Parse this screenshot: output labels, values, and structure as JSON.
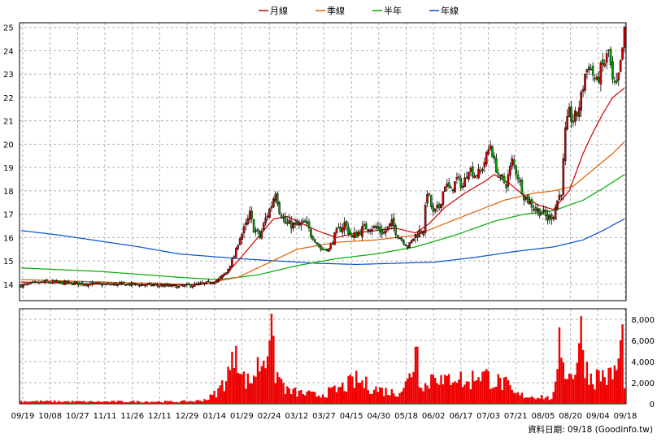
{
  "chart_data": {
    "type": "candlestick",
    "legend": [
      {
        "name": "月線",
        "color": "#cc0000"
      },
      {
        "name": "季線",
        "color": "#e06000"
      },
      {
        "name": "半年",
        "color": "#00aa00"
      },
      {
        "name": "年線",
        "color": "#0050cc"
      }
    ],
    "legend_placement": "top-center",
    "grid": true,
    "price_axis": {
      "ylim": [
        13.3,
        25.2
      ],
      "ticks": [
        14,
        15,
        16,
        17,
        18,
        19,
        20,
        21,
        22,
        23,
        24,
        25
      ]
    },
    "volume_axis": {
      "ylim": [
        0,
        9000
      ],
      "ticks": [
        0,
        2000,
        4000,
        6000,
        8000
      ],
      "tick_labels": [
        "0",
        "2,000",
        "4,000",
        "6,000",
        "8,000"
      ]
    },
    "x_tick_labels": [
      "09/19",
      "10/08",
      "10/27",
      "11/11",
      "11/26",
      "12/11",
      "12/29",
      "01/14",
      "01/29",
      "02/24",
      "03/12",
      "03/27",
      "04/15",
      "04/30",
      "05/18",
      "06/02",
      "06/17",
      "07/03",
      "07/21",
      "08/05",
      "08/20",
      "09/04",
      "09/18"
    ],
    "source_note": "資料日期: 09/18  (Goodinfo.tw)",
    "colors": {
      "up": "#cc0000",
      "down": "#00a000",
      "volume": "#ee0000",
      "grid": "#b0b0b0"
    },
    "price_path": [
      [
        0,
        13.95
      ],
      [
        12,
        14.1
      ],
      [
        25,
        14.05
      ],
      [
        40,
        14.0
      ],
      [
        55,
        14.0
      ],
      [
        70,
        13.95
      ],
      [
        80,
        13.9
      ],
      [
        90,
        14.0
      ],
      [
        95,
        14.05
      ],
      [
        100,
        14.2
      ],
      [
        104,
        14.5
      ],
      [
        108,
        15.2
      ],
      [
        111,
        16.0
      ],
      [
        114,
        16.5
      ],
      [
        116,
        17.0
      ],
      [
        118,
        16.4
      ],
      [
        121,
        16.0
      ],
      [
        124,
        16.8
      ],
      [
        127,
        17.4
      ],
      [
        129,
        18.0
      ],
      [
        131,
        17.2
      ],
      [
        134,
        16.6
      ],
      [
        140,
        16.5
      ],
      [
        144,
        16.6
      ],
      [
        148,
        16.0
      ],
      [
        152,
        15.5
      ],
      [
        156,
        15.5
      ],
      [
        160,
        16.2
      ],
      [
        164,
        16.6
      ],
      [
        168,
        16.0
      ],
      [
        172,
        16.3
      ],
      [
        176,
        16.5
      ],
      [
        180,
        16.4
      ],
      [
        184,
        16.2
      ],
      [
        188,
        16.6
      ],
      [
        192,
        16.0
      ],
      [
        196,
        15.6
      ],
      [
        200,
        16.1
      ],
      [
        204,
        16.4
      ],
      [
        206,
        18.0
      ],
      [
        209,
        17.0
      ],
      [
        212,
        17.3
      ],
      [
        215,
        18.3
      ],
      [
        218,
        18.0
      ],
      [
        221,
        18.5
      ],
      [
        224,
        18.2
      ],
      [
        227,
        19.0
      ],
      [
        230,
        18.7
      ],
      [
        233,
        18.8
      ],
      [
        236,
        19.5
      ],
      [
        238,
        20.0
      ],
      [
        240,
        19.2
      ],
      [
        243,
        18.5
      ],
      [
        246,
        18.3
      ],
      [
        249,
        19.3
      ],
      [
        252,
        18.6
      ],
      [
        255,
        17.8
      ],
      [
        258,
        17.5
      ],
      [
        261,
        17.2
      ],
      [
        264,
        17.1
      ],
      [
        267,
        16.8
      ],
      [
        270,
        17.0
      ],
      [
        272,
        17.6
      ],
      [
        274,
        18.0
      ],
      [
        276,
        20.5
      ],
      [
        278,
        21.3
      ],
      [
        280,
        21.0
      ],
      [
        282,
        21.3
      ],
      [
        284,
        22.0
      ],
      [
        286,
        23.0
      ],
      [
        288,
        23.4
      ],
      [
        290,
        23.0
      ],
      [
        292,
        22.6
      ],
      [
        294,
        23.2
      ],
      [
        296,
        23.5
      ],
      [
        298,
        24.0
      ],
      [
        300,
        22.6
      ],
      [
        302,
        22.4
      ],
      [
        304,
        23.4
      ],
      [
        306,
        24.8
      ]
    ],
    "ma_month": [
      [
        0,
        14.1
      ],
      [
        40,
        14.0
      ],
      [
        90,
        13.98
      ],
      [
        100,
        14.1
      ],
      [
        110,
        15.0
      ],
      [
        120,
        16.0
      ],
      [
        128,
        16.8
      ],
      [
        135,
        16.9
      ],
      [
        150,
        16.3
      ],
      [
        160,
        16.0
      ],
      [
        170,
        16.2
      ],
      [
        180,
        16.3
      ],
      [
        190,
        16.4
      ],
      [
        200,
        16.2
      ],
      [
        207,
        16.6
      ],
      [
        215,
        17.3
      ],
      [
        225,
        17.9
      ],
      [
        235,
        18.4
      ],
      [
        240,
        18.7
      ],
      [
        248,
        18.3
      ],
      [
        255,
        17.8
      ],
      [
        262,
        17.4
      ],
      [
        270,
        17.2
      ],
      [
        278,
        18.0
      ],
      [
        285,
        19.6
      ],
      [
        290,
        20.5
      ],
      [
        295,
        21.3
      ],
      [
        300,
        22.0
      ],
      [
        306,
        22.4
      ]
    ],
    "ma_quarter": [
      [
        0,
        14.2
      ],
      [
        40,
        14.1
      ],
      [
        90,
        13.98
      ],
      [
        110,
        14.3
      ],
      [
        125,
        14.9
      ],
      [
        140,
        15.5
      ],
      [
        160,
        15.8
      ],
      [
        180,
        15.9
      ],
      [
        200,
        16.1
      ],
      [
        215,
        16.6
      ],
      [
        230,
        17.1
      ],
      [
        245,
        17.6
      ],
      [
        260,
        17.9
      ],
      [
        270,
        18.0
      ],
      [
        280,
        18.2
      ],
      [
        290,
        18.9
      ],
      [
        300,
        19.6
      ],
      [
        306,
        20.1
      ]
    ],
    "ma_half": [
      [
        0,
        14.7
      ],
      [
        40,
        14.55
      ],
      [
        80,
        14.3
      ],
      [
        100,
        14.2
      ],
      [
        120,
        14.4
      ],
      [
        140,
        14.8
      ],
      [
        160,
        15.1
      ],
      [
        180,
        15.3
      ],
      [
        200,
        15.6
      ],
      [
        220,
        16.1
      ],
      [
        240,
        16.7
      ],
      [
        255,
        17.0
      ],
      [
        270,
        17.15
      ],
      [
        285,
        17.6
      ],
      [
        295,
        18.1
      ],
      [
        306,
        18.7
      ]
    ],
    "ma_year": [
      [
        0,
        16.3
      ],
      [
        20,
        16.1
      ],
      [
        40,
        15.85
      ],
      [
        60,
        15.6
      ],
      [
        80,
        15.3
      ],
      [
        95,
        15.2
      ],
      [
        110,
        15.1
      ],
      [
        130,
        15.0
      ],
      [
        150,
        14.9
      ],
      [
        170,
        14.85
      ],
      [
        190,
        14.9
      ],
      [
        210,
        14.95
      ],
      [
        230,
        15.15
      ],
      [
        250,
        15.4
      ],
      [
        270,
        15.6
      ],
      [
        285,
        15.9
      ],
      [
        295,
        16.3
      ],
      [
        306,
        16.8
      ]
    ],
    "volume_path": [
      [
        0,
        250
      ],
      [
        20,
        220
      ],
      [
        40,
        200
      ],
      [
        60,
        220
      ],
      [
        80,
        200
      ],
      [
        90,
        280
      ],
      [
        95,
        500
      ],
      [
        100,
        1200
      ],
      [
        104,
        2500
      ],
      [
        107,
        3600
      ],
      [
        109,
        6500
      ],
      [
        112,
        2500
      ],
      [
        116,
        2000
      ],
      [
        120,
        3500
      ],
      [
        124,
        4800
      ],
      [
        126,
        7500
      ],
      [
        129,
        3000
      ],
      [
        135,
        1200
      ],
      [
        150,
        800
      ],
      [
        160,
        1300
      ],
      [
        170,
        2200
      ],
      [
        180,
        1400
      ],
      [
        190,
        1000
      ],
      [
        196,
        2000
      ],
      [
        199,
        3800
      ],
      [
        200,
        7000
      ],
      [
        202,
        2500
      ],
      [
        206,
        1600
      ],
      [
        210,
        3400
      ],
      [
        214,
        1800
      ],
      [
        220,
        2900
      ],
      [
        226,
        1800
      ],
      [
        232,
        3000
      ],
      [
        240,
        2200
      ],
      [
        246,
        1800
      ],
      [
        250,
        900
      ],
      [
        258,
        700
      ],
      [
        264,
        700
      ],
      [
        268,
        500
      ],
      [
        270,
        800
      ],
      [
        272,
        2300
      ],
      [
        273,
        8500
      ],
      [
        275,
        4000
      ],
      [
        278,
        2500
      ],
      [
        281,
        3500
      ],
      [
        284,
        6500
      ],
      [
        287,
        3200
      ],
      [
        290,
        2300
      ],
      [
        294,
        2800
      ],
      [
        298,
        2500
      ],
      [
        302,
        3200
      ],
      [
        305,
        6000
      ],
      [
        306,
        2400
      ]
    ]
  }
}
